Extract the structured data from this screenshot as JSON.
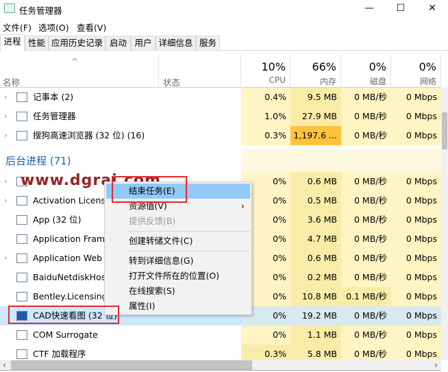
{
  "window": {
    "title": "任务管理器",
    "minimize": "—",
    "maximize": "☐",
    "close": "✕"
  },
  "menu": [
    "文件(F)",
    "选项(O)",
    "查看(V)"
  ],
  "tabs": [
    "进程",
    "性能",
    "应用历史记录",
    "启动",
    "用户",
    "详细信息",
    "服务"
  ],
  "header": {
    "name": "名称",
    "status": "状态",
    "cpu_pct": "10%",
    "cpu": "CPU",
    "mem_pct": "66%",
    "mem": "内存",
    "disk_pct": "0%",
    "disk": "磁盘",
    "net_pct": "0%",
    "net": "网络"
  },
  "apps": [
    {
      "name": "记事本 (2)",
      "cpu": "0.4%",
      "mem": "9.5 MB",
      "disk": "0 MB/秒",
      "net": "0 Mbps"
    },
    {
      "name": "任务管理器",
      "cpu": "1.0%",
      "mem": "27.9 MB",
      "disk": "0 MB/秒",
      "net": "0 Mbps"
    },
    {
      "name": "搜狗高速浏览器 (32 位) (16)",
      "cpu": "0.3%",
      "mem": "1,197.6 ...",
      "disk": "0 MB/秒",
      "net": "0 Mbps"
    }
  ],
  "group": "后台进程 (71)",
  "background": [
    {
      "name": "",
      "cpu": "0%",
      "mem": "0.6 MB",
      "disk": "0 MB/秒",
      "net": "0 Mbps"
    },
    {
      "name": "Activation Licensing Service",
      "cpu": "0%",
      "mem": "0.5 MB",
      "disk": "0 MB/秒",
      "net": "0 Mbps"
    },
    {
      "name": "App (32 位)",
      "cpu": "0%",
      "mem": "3.6 MB",
      "disk": "0 MB/秒",
      "net": "0 Mbps"
    },
    {
      "name": "Application Frame Host",
      "cpu": "0%",
      "mem": "4.7 MB",
      "disk": "0 MB/秒",
      "net": "0 Mbps"
    },
    {
      "name": "Application Web Server",
      "cpu": "0%",
      "mem": "0.6 MB",
      "disk": "0 MB/秒",
      "net": "0 Mbps"
    },
    {
      "name": "BaiduNetdiskHost",
      "cpu": "0%",
      "mem": "0.2 MB",
      "disk": "0 MB/秒",
      "net": "0 Mbps"
    },
    {
      "name": "Bentley.Licensing.Service",
      "cpu": "0%",
      "mem": "10.8 MB",
      "disk": "0.1 MB/秒",
      "net": "0 Mbps"
    },
    {
      "name": "CAD快速看图 (32 位)",
      "cpu": "0%",
      "mem": "19.2 MB",
      "disk": "0 MB/秒",
      "net": "0 Mbps"
    },
    {
      "name": "COM Surrogate",
      "cpu": "0%",
      "mem": "1.1 MB",
      "disk": "0 MB/秒",
      "net": "0 Mbps"
    },
    {
      "name": "CTF 加载程序",
      "cpu": "0.3%",
      "mem": "5.8 MB",
      "disk": "0 MB/秒",
      "net": "0 Mbps"
    }
  ],
  "context_menu": [
    "结束任务(E)",
    "资源值(V)",
    "提供反馈(B)",
    "创建转储文件(C)",
    "转到详细信息(G)",
    "打开文件所在的位置(O)",
    "在线搜索(S)",
    "属性(I)"
  ],
  "watermark": "www.dgrai.com",
  "colors": {
    "heat_light": "#fff4c4",
    "heat_mid": "#f9eca8",
    "heat_high": "#ffc33c",
    "selected": "#cce8ff",
    "menu_highlight": "#91c9f7",
    "annotation": "#e8262c"
  }
}
